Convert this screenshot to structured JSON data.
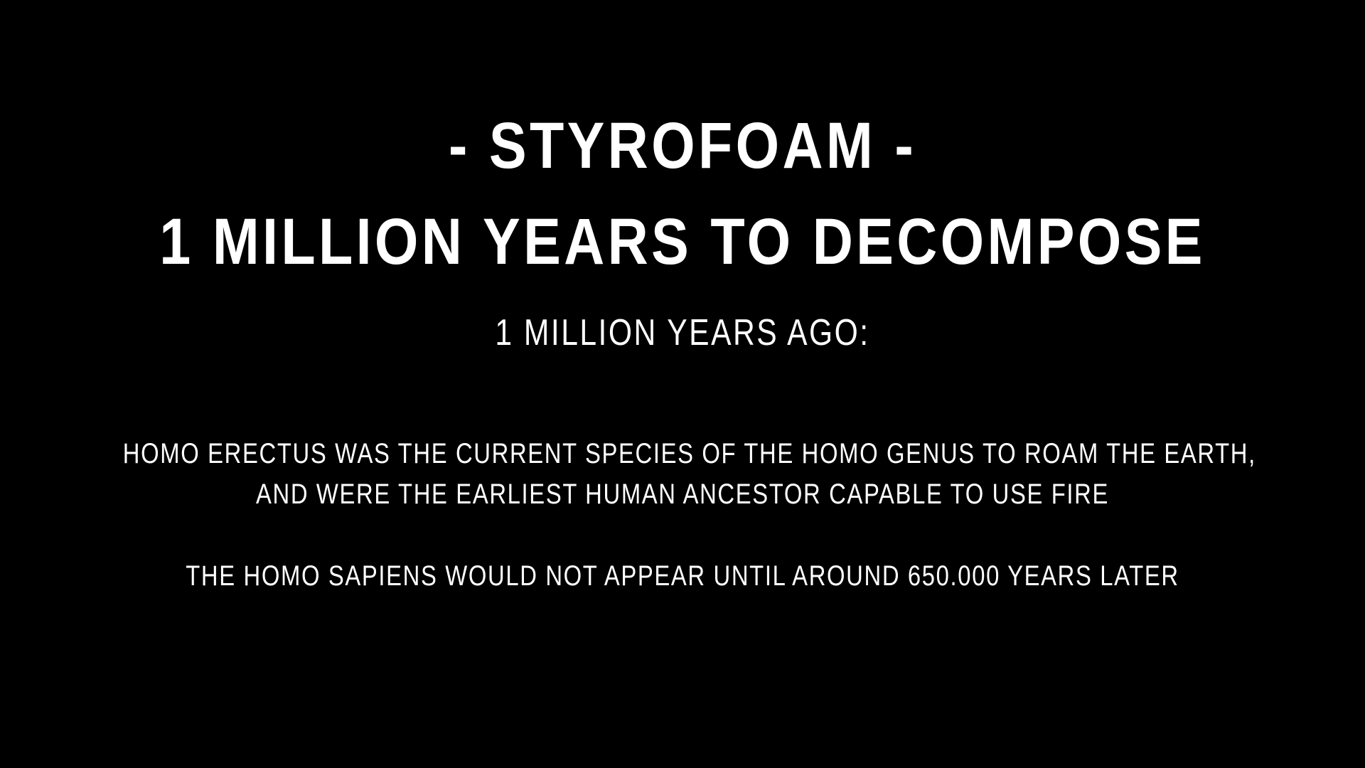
{
  "slide": {
    "title": "- STYROFOAM -",
    "headline": "1 MILLION YEARS TO DECOMPOSE",
    "subheading": "1 MILLION YEARS AGO:",
    "paragraphs": [
      "HOMO ERECTUS WAS THE CURRENT SPECIES OF THE HOMO GENUS TO ROAM THE EARTH,",
      "AND WERE THE EARLIEST HUMAN ANCESTOR CAPABLE TO USE FIRE",
      "THE HOMO SAPIENS WOULD NOT APPEAR UNTIL AROUND 650.000 YEARS LATER"
    ]
  },
  "colors": {
    "background": "#000000",
    "text": "#ffffff"
  }
}
